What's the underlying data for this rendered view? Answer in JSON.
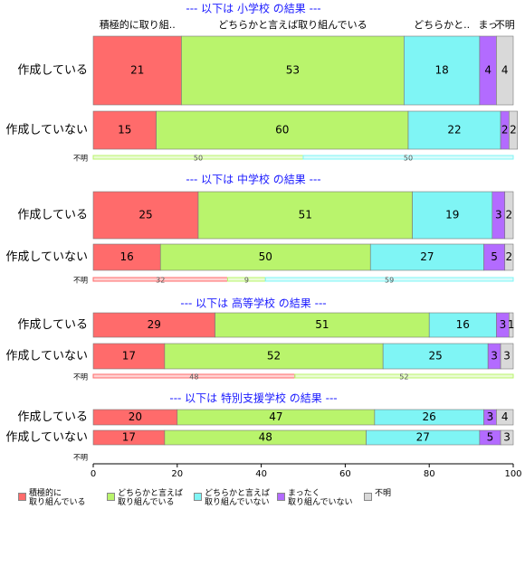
{
  "chart_data": {
    "type": "bar",
    "stacked": true,
    "orientation": "horizontal",
    "xlim": [
      0,
      100
    ],
    "xticks": [
      0,
      20,
      40,
      60,
      80,
      100
    ],
    "series": [
      {
        "name": "積極的に\n取り組んでいる",
        "color": "#ff6b6b"
      },
      {
        "name": "どちらかと言えば\n取り組んでいる",
        "color": "#b9f46c"
      },
      {
        "name": "どちらかと言えば\n取り組んでいない",
        "color": "#7ff5f5"
      },
      {
        "name": "まったく\n取り組んでいない",
        "color": "#b36bff"
      },
      {
        "name": "不明",
        "color": "#d9d9d9"
      }
    ],
    "header_labels": [
      "積極的に取り組..",
      "どちらかと言えば取り組んでいる",
      "どちらかと..",
      "まっ",
      "不明"
    ],
    "panels": [
      {
        "title": "--- 以下は 小学校 の結果 ---",
        "categories": [
          "作成している",
          "作成していない",
          "不明"
        ],
        "values": [
          [
            21,
            53,
            18,
            4,
            4
          ],
          [
            15,
            60,
            22,
            2,
            2
          ],
          [
            null,
            50,
            50,
            null,
            null
          ]
        ]
      },
      {
        "title": "--- 以下は 中学校 の結果 ---",
        "categories": [
          "作成している",
          "作成していない",
          "不明"
        ],
        "values": [
          [
            25,
            51,
            19,
            3,
            2
          ],
          [
            16,
            50,
            27,
            5,
            2
          ],
          [
            32,
            9,
            59,
            null,
            null
          ]
        ]
      },
      {
        "title": "--- 以下は 高等学校 の結果 ---",
        "categories": [
          "作成している",
          "作成していない",
          "不明"
        ],
        "values": [
          [
            29,
            51,
            16,
            3,
            1
          ],
          [
            17,
            52,
            25,
            3,
            3
          ],
          [
            48,
            52,
            null,
            null,
            null
          ]
        ]
      },
      {
        "title": "--- 以下は 特別支援学校 の結果 ---",
        "categories": [
          "作成している",
          "作成していない",
          "不明"
        ],
        "values": [
          [
            20,
            47,
            26,
            3,
            4
          ],
          [
            17,
            48,
            27,
            5,
            3
          ],
          [
            null,
            null,
            null,
            null,
            null
          ]
        ]
      }
    ]
  }
}
